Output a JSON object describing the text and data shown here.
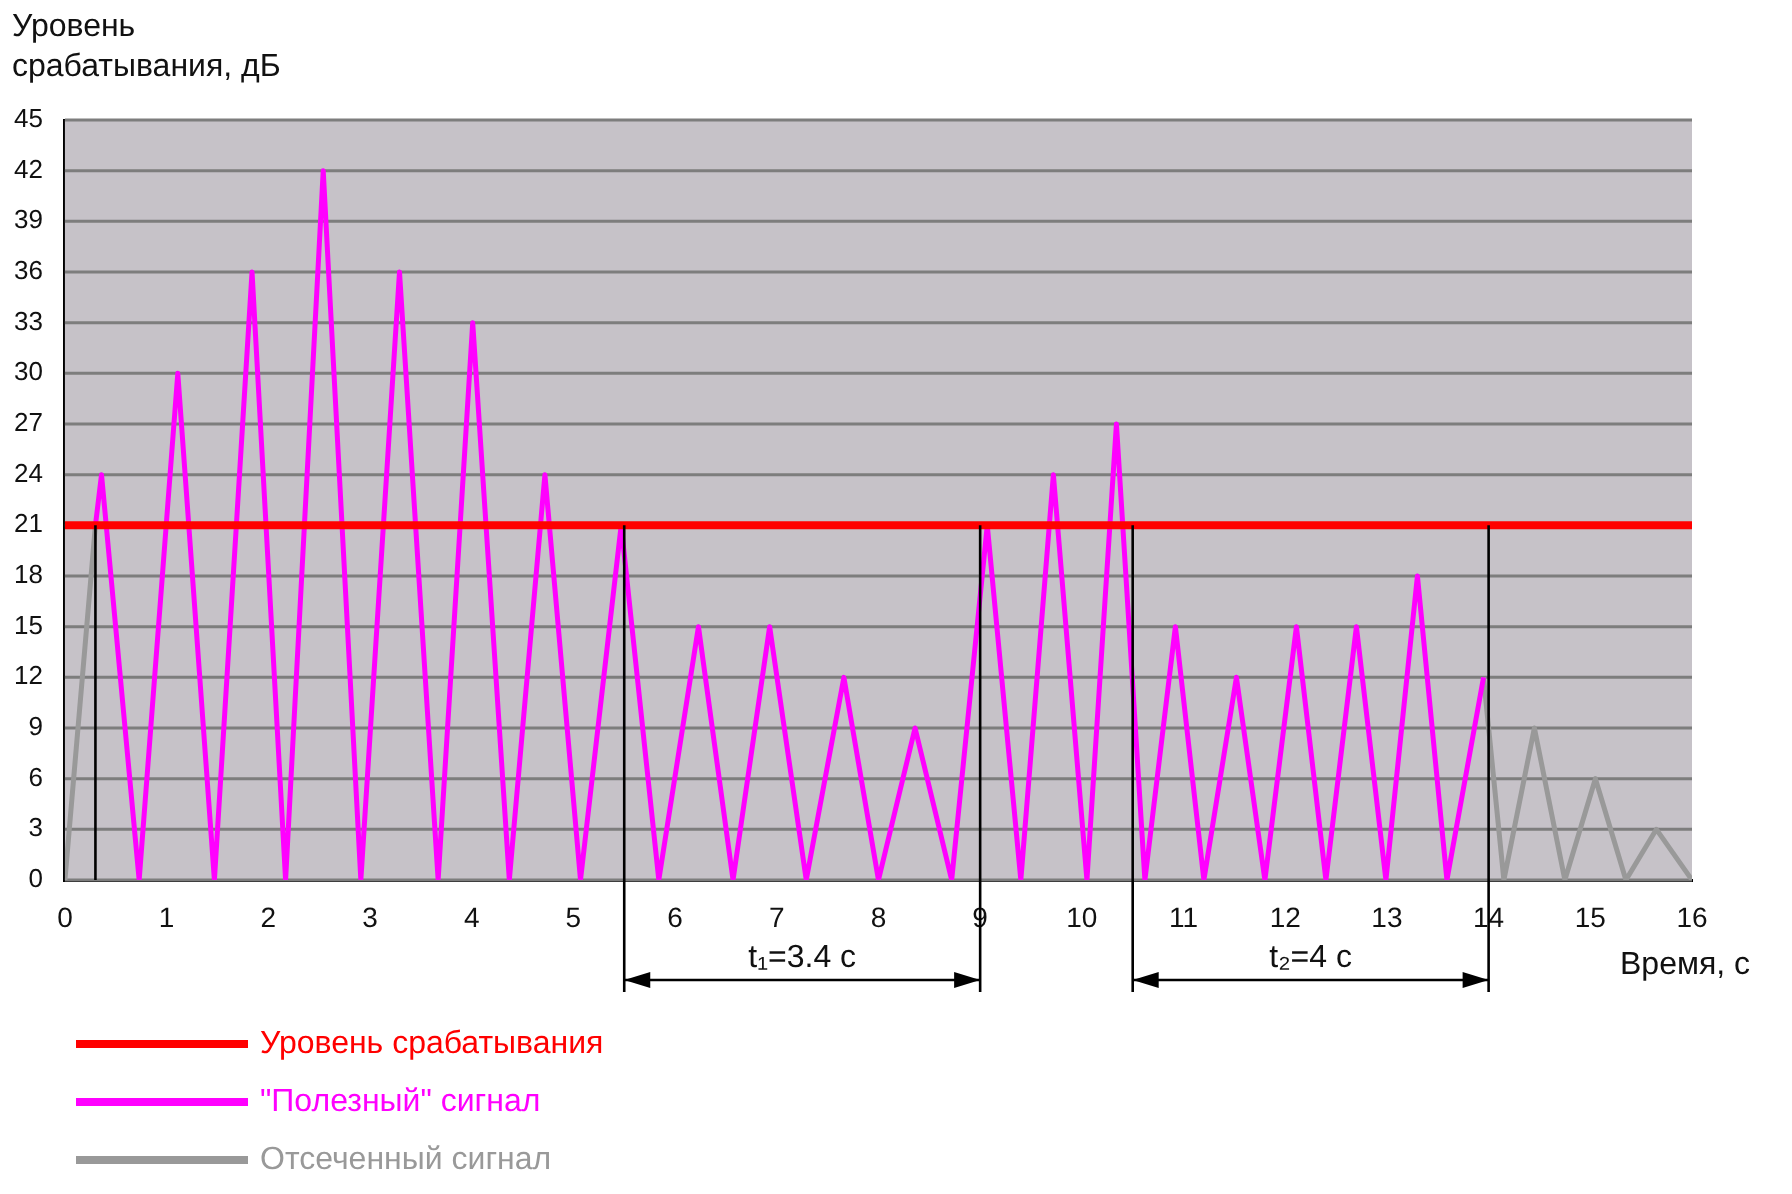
{
  "chart_data": {
    "type": "line",
    "ylabel": "Уровень\nсрабатывания, дБ",
    "xlabel": "Время, с",
    "xlim": [
      0,
      16
    ],
    "xticks": [
      0,
      1,
      2,
      3,
      4,
      5,
      6,
      7,
      8,
      9,
      10,
      11,
      12,
      13,
      14,
      15,
      16
    ],
    "ylim": [
      0,
      45
    ],
    "yticks": [
      0,
      3,
      6,
      9,
      12,
      15,
      18,
      21,
      24,
      27,
      30,
      33,
      36,
      39,
      42,
      45
    ],
    "grid": "y",
    "legend": "bottom left",
    "marker": "none",
    "line_style": "solid",
    "series": [
      {
        "name": "Уровень срабатывания",
        "color": "#ff0000",
        "x": [
          0,
          16
        ],
        "values": [
          21,
          21
        ]
      },
      {
        "name": "\"Полезный\" сигнал",
        "color": "#ff00ff",
        "x": [
          0.3,
          0.36,
          0.73,
          1.11,
          1.47,
          1.84,
          2.17,
          2.54,
          2.91,
          3.29,
          3.67,
          4.01,
          4.37,
          4.72,
          5.07,
          5.47,
          5.84,
          6.23,
          6.57,
          6.93,
          7.29,
          7.66,
          8.0,
          8.36,
          8.72,
          9.07,
          9.4,
          9.72,
          10.05,
          10.34,
          10.62,
          10.92,
          11.2,
          11.52,
          11.8,
          12.11,
          12.4,
          12.7,
          12.99,
          13.3,
          13.59,
          13.95
        ],
        "values": [
          21,
          24,
          0,
          30,
          0,
          36,
          0,
          42,
          0,
          36,
          0,
          33,
          0,
          24,
          0,
          21,
          0,
          15,
          0,
          15,
          0,
          12,
          0,
          9,
          0,
          21,
          0,
          24,
          0,
          27,
          0,
          15,
          0,
          12,
          0,
          15,
          0,
          15,
          0,
          18,
          0,
          12
        ]
      },
      {
        "name": "Отсеченный сигнал",
        "color": "#999999",
        "x": [
          0,
          0.3,
          7,
          13.95,
          14.15,
          14.45,
          14.75,
          15.05,
          15.35,
          15.65,
          16
        ],
        "values": [
          0,
          21,
          null,
          12,
          0,
          9,
          0,
          6,
          0,
          3,
          0
        ]
      }
    ],
    "ref_lines": [
      {
        "axis": "x",
        "value": 0.3,
        "color": "#000000"
      },
      {
        "axis": "x",
        "value": 5.5,
        "color": "#000000"
      },
      {
        "axis": "x",
        "value": 9.0,
        "color": "#000000"
      },
      {
        "axis": "x",
        "value": 10.5,
        "color": "#000000"
      },
      {
        "axis": "x",
        "value": 14,
        "color": "#000000"
      }
    ],
    "annotations": [
      "t₁=3.4 с",
      "t₂=4 с"
    ]
  }
}
